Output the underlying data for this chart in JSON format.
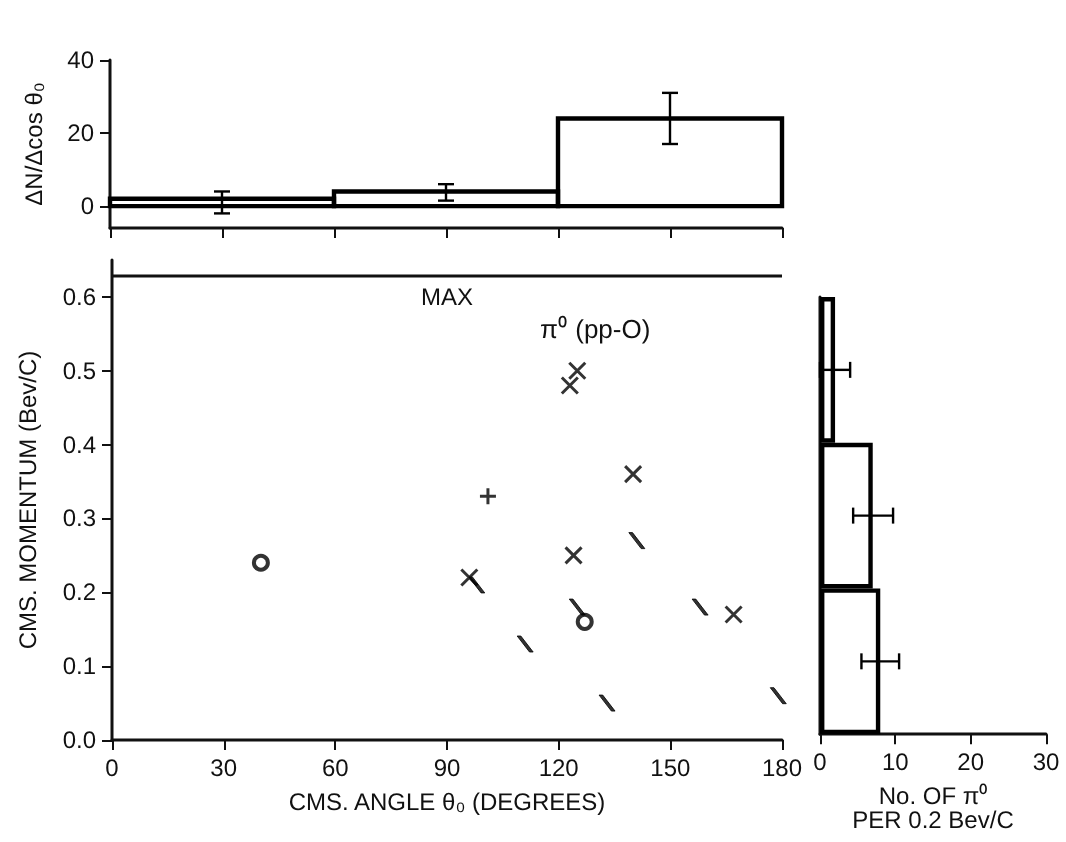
{
  "chart_data": [
    {
      "type": "histogram",
      "ylabel": "ΔN/Δcos θ₀",
      "bins": [
        0,
        60,
        120,
        180
      ],
      "values": [
        2,
        4,
        24
      ],
      "errors": [
        [
          -2,
          4
        ],
        [
          1.5,
          6
        ],
        [
          17,
          31
        ]
      ],
      "color": "#000000",
      "xlim": [
        0,
        180
      ],
      "xticks": [
        0,
        30,
        60,
        90,
        120,
        150,
        180
      ],
      "ylim": [
        -6,
        40
      ],
      "yticks": [
        0,
        20,
        40
      ],
      "tick_labels": "y",
      "grid": false
    },
    {
      "type": "scatter",
      "xlabel": "CMS. ANGLE θ₀ (DEGREES)",
      "ylabel": "CMS. MOMENTUM (Bev/C)",
      "xlim": [
        0,
        180
      ],
      "xticks": [
        0,
        30,
        60,
        90,
        120,
        150,
        180
      ],
      "ylim": [
        0,
        0.65
      ],
      "yticks": [
        {
          "value": 0,
          "label": "0.0"
        },
        0.1,
        0.2,
        0.3,
        0.4,
        0.5,
        0.6
      ],
      "grid": false,
      "series": [
        {
          "marker": "cross",
          "color": "#000000",
          "x": [
            96,
            123,
            125,
            124,
            140,
            167
          ],
          "values": [
            0.22,
            0.48,
            0.5,
            0.25,
            0.36,
            0.17
          ]
        },
        {
          "marker": "circle",
          "color": "#000000",
          "x": [
            40,
            127
          ],
          "values": [
            0.24,
            0.16
          ]
        },
        {
          "marker": "plus",
          "color": "#000000",
          "x": [
            101
          ],
          "values": [
            0.33
          ]
        },
        {
          "color": "#000000",
          "x": [
            98,
            111,
            125,
            133,
            141,
            158,
            179
          ],
          "values": [
            0.21,
            0.13,
            0.18,
            0.05,
            0.27,
            0.18,
            0.06
          ]
        }
      ],
      "ref_lines": [
        {
          "axis": "y",
          "value": 0.63,
          "label": "MAX"
        }
      ],
      "annotations": [
        "π⁰ (pp-O)"
      ]
    },
    {
      "type": "bar",
      "orientation": "horizontal",
      "xlabel": "No. OF π⁰\nPER 0.2 Bev/C",
      "categories": [
        null,
        null,
        null
      ],
      "values": [
        2,
        7,
        8
      ],
      "errors": [
        [
          0,
          4
        ],
        [
          4.4,
          9.7
        ],
        [
          5.5,
          10.5
        ]
      ],
      "color": "#000000",
      "xlim": [
        0,
        30
      ],
      "xticks": [
        0,
        10,
        20,
        30
      ],
      "tick_labels": "x",
      "grid": false
    }
  ]
}
